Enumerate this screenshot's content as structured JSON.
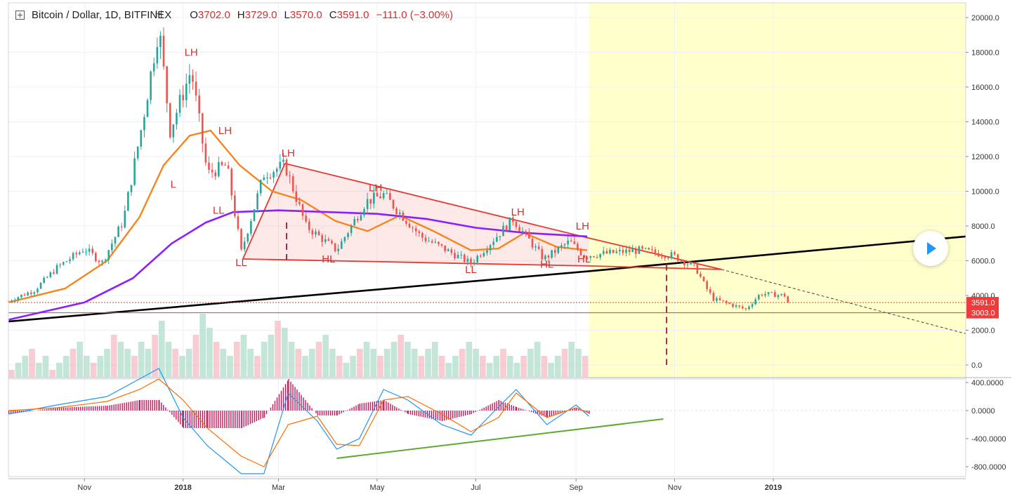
{
  "header": {
    "symbol": "Bitcoin / Dollar, 1D, BITFINEX",
    "o_label": "O",
    "o": "3702.0",
    "h_label": "H",
    "h": "3729.0",
    "l_label": "L",
    "l": "3570.0",
    "c_label": "C",
    "c": "3591.0",
    "change": "−111.0 (−3.00%)"
  },
  "colors": {
    "up": "#26a69a",
    "down": "#ef5350",
    "ma_fast": "#f5861f",
    "ma_slow": "#8c1eff",
    "support": "#000000",
    "triangle": "#e53935",
    "projection_zone": "#ffffcc",
    "macd": "#2196f3",
    "signal": "#ff6d00",
    "histogram": "#c2185b",
    "divergence": "#5fa832"
  },
  "chart_data": [
    {
      "type": "candlestick",
      "title": "Bitcoin / Dollar, 1D, BITFINEX",
      "xlabel": "",
      "ylabel": "",
      "x_ticks": [
        "Nov",
        "2018",
        "Mar",
        "May",
        "Jul",
        "Sep",
        "Nov",
        "2019"
      ],
      "y_ticks": [
        "20000.0",
        "18000.0",
        "16000.0",
        "14000.0",
        "12000.0",
        "10000.0",
        "8000.0",
        "6000.0",
        "4000.0",
        "2000.0",
        "0.0"
      ],
      "ylim": [
        -600,
        20800
      ],
      "price_labels": {
        "last": "3591.0",
        "level": "3003.0"
      },
      "price_path": [
        [
          "2017-09-15",
          3700
        ],
        [
          "2017-10-01",
          4300
        ],
        [
          "2017-10-15",
          5600
        ],
        [
          "2017-11-01",
          6700
        ],
        [
          "2017-11-12",
          5900
        ],
        [
          "2017-11-25",
          8300
        ],
        [
          "2017-12-07",
          14000
        ],
        [
          "2017-12-17",
          19500
        ],
        [
          "2017-12-24",
          13500
        ],
        [
          "2018-01-06",
          17000
        ],
        [
          "2018-01-16",
          11000
        ],
        [
          "2018-01-28",
          11500
        ],
        [
          "2018-02-06",
          6500
        ],
        [
          "2018-02-20",
          11000
        ],
        [
          "2018-03-05",
          11500
        ],
        [
          "2018-03-18",
          8000
        ],
        [
          "2018-04-06",
          6600
        ],
        [
          "2018-04-24",
          9400
        ],
        [
          "2018-05-05",
          9800
        ],
        [
          "2018-05-28",
          7400
        ],
        [
          "2018-06-28",
          5850
        ],
        [
          "2018-07-24",
          8400
        ],
        [
          "2018-08-12",
          6100
        ],
        [
          "2018-08-28",
          7100
        ],
        [
          "2018-09-06",
          6300
        ],
        [
          "2018-10-10",
          6600
        ],
        [
          "2018-10-31",
          6300
        ],
        [
          "2018-11-14",
          5600
        ],
        [
          "2018-11-20",
          4500
        ],
        [
          "2018-11-25",
          3800
        ],
        [
          "2018-12-15",
          3200
        ],
        [
          "2018-12-24",
          4100
        ],
        [
          "2019-01-09",
          4000
        ],
        [
          "2019-01-10",
          3591
        ]
      ],
      "series": [
        {
          "name": "",
          "kind": "moving_average",
          "color": "#f5861f",
          "points": [
            [
              "2017-09-15",
              3600
            ],
            [
              "2017-10-20",
              4400
            ],
            [
              "2017-11-15",
              6000
            ],
            [
              "2017-12-05",
              8500
            ],
            [
              "2017-12-20",
              11500
            ],
            [
              "2018-01-05",
              13200
            ],
            [
              "2018-01-18",
              13500
            ],
            [
              "2018-02-05",
              11500
            ],
            [
              "2018-02-25",
              10000
            ],
            [
              "2018-03-15",
              9500
            ],
            [
              "2018-04-05",
              8300
            ],
            [
              "2018-04-25",
              7700
            ],
            [
              "2018-05-15",
              8600
            ],
            [
              "2018-06-05",
              7700
            ],
            [
              "2018-06-28",
              6600
            ],
            [
              "2018-07-15",
              6700
            ],
            [
              "2018-07-31",
              7600
            ],
            [
              "2018-08-20",
              6800
            ],
            [
              "2018-09-08",
              6600
            ]
          ]
        },
        {
          "name": "",
          "kind": "moving_average",
          "color": "#8c1eff",
          "points": [
            [
              "2017-09-15",
              2600
            ],
            [
              "2017-11-01",
              3600
            ],
            [
              "2017-12-01",
              5000
            ],
            [
              "2017-12-25",
              7000
            ],
            [
              "2018-01-15",
              8200
            ],
            [
              "2018-02-01",
              8800
            ],
            [
              "2018-03-01",
              8900
            ],
            [
              "2018-04-01",
              8800
            ],
            [
              "2018-05-01",
              8700
            ],
            [
              "2018-06-01",
              8400
            ],
            [
              "2018-07-01",
              7900
            ],
            [
              "2018-08-01",
              7600
            ],
            [
              "2018-09-08",
              7400
            ]
          ]
        }
      ],
      "annotations": {
        "labels": [
          {
            "text": "H",
            "date": "2017-12-17",
            "value": 20000
          },
          {
            "text": "LH",
            "date": "2018-01-06",
            "value": 17800
          },
          {
            "text": "LH",
            "date": "2018-01-27",
            "value": 13300
          },
          {
            "text": "L",
            "date": "2017-12-26",
            "value": 10200
          },
          {
            "text": "LL",
            "date": "2018-01-23",
            "value": 8700
          },
          {
            "text": "LH",
            "date": "2018-03-07",
            "value": 12000
          },
          {
            "text": "LL",
            "date": "2018-02-06",
            "value": 5700
          },
          {
            "text": "HL",
            "date": "2018-04-01",
            "value": 5900
          },
          {
            "text": "LH",
            "date": "2018-04-30",
            "value": 10000
          },
          {
            "text": "LL",
            "date": "2018-06-28",
            "value": 5300
          },
          {
            "text": "LH",
            "date": "2018-07-27",
            "value": 8600
          },
          {
            "text": "HL",
            "date": "2018-08-14",
            "value": 5600
          },
          {
            "text": "LH",
            "date": "2018-09-05",
            "value": 7800
          },
          {
            "text": "HL",
            "date": "2018-09-06",
            "value": 5900
          }
        ],
        "triangle": [
          [
            "2018-02-07",
            6100
          ],
          [
            "2018-03-05",
            11600
          ],
          [
            "2018-09-09",
            7300
          ],
          [
            "2018-11-30",
            5500
          ],
          [
            "2018-09-09",
            5700
          ]
        ],
        "support_line": [
          [
            "2017-09-15",
            2500
          ],
          [
            "2018-09-09",
            5400
          ],
          [
            "2019-04-30",
            7400
          ]
        ],
        "projection_line": [
          [
            "2018-11-30",
            5500
          ],
          [
            "2019-04-30",
            1800
          ]
        ],
        "horizontal_level": 3003,
        "measured_moves": [
          {
            "date": "2018-03-06",
            "from": 8200,
            "to": 6000
          },
          {
            "date": "2018-10-27",
            "from": 5800,
            "to": 0
          }
        ],
        "projection_zone": [
          "2018-09-09",
          "2019-04-30"
        ]
      }
    },
    {
      "type": "bar",
      "name": "Volume",
      "values": [
        1,
        2,
        3,
        4,
        2,
        3,
        1,
        2,
        3,
        4,
        5,
        3,
        2,
        3,
        4,
        6,
        5,
        4,
        3,
        5,
        4,
        6,
        8,
        5,
        4,
        3,
        4,
        6,
        9,
        7,
        5,
        4,
        3,
        5,
        6,
        4,
        3,
        5,
        6,
        8,
        7,
        5,
        4,
        3,
        4,
        5,
        6,
        4,
        3,
        2,
        3,
        4,
        5,
        4,
        3,
        4,
        5,
        6,
        5,
        4,
        3,
        4,
        5,
        3,
        2,
        3,
        4,
        5,
        4,
        3,
        2,
        3,
        4,
        3,
        2,
        3,
        4,
        5,
        3,
        2,
        3,
        4,
        5,
        4,
        3
      ]
    },
    {
      "type": "line",
      "name": "MACD",
      "y_ticks": [
        "400.0000",
        "0.0000",
        "-400.0000",
        "-800.0000"
      ],
      "ylim": [
        -880,
        430
      ],
      "x": [
        "2017-09-15",
        "2017-10-15",
        "2017-11-15",
        "2017-12-05",
        "2017-12-17",
        "2018-01-01",
        "2018-01-16",
        "2018-02-06",
        "2018-02-20",
        "2018-03-07",
        "2018-03-25",
        "2018-04-06",
        "2018-04-20",
        "2018-05-05",
        "2018-05-20",
        "2018-06-10",
        "2018-06-28",
        "2018-07-15",
        "2018-07-26",
        "2018-08-14",
        "2018-09-01",
        "2018-09-09"
      ],
      "series": [
        {
          "name": "",
          "values": [
            -50,
            80,
            200,
            450,
            600,
            -100,
            -500,
            -900,
            -900,
            250,
            -150,
            -550,
            -400,
            300,
            150,
            -200,
            -350,
            50,
            300,
            -200,
            80,
            -80
          ]
        },
        {
          "name": "",
          "values": [
            0,
            40,
            130,
            300,
            450,
            150,
            -250,
            -650,
            -800,
            -200,
            -80,
            -480,
            -500,
            150,
            200,
            -50,
            -300,
            -100,
            250,
            -100,
            40,
            -30
          ]
        },
        {
          "name": "",
          "values": [
            -50,
            40,
            70,
            150,
            150,
            -250,
            -250,
            -250,
            -100,
            450,
            -70,
            -70,
            100,
            150,
            -50,
            -150,
            -50,
            150,
            50,
            -100,
            40,
            -50
          ]
        }
      ],
      "divergence_line": [
        [
          "2018-04-06",
          -680
        ],
        [
          "2018-10-25",
          -120
        ]
      ]
    }
  ]
}
